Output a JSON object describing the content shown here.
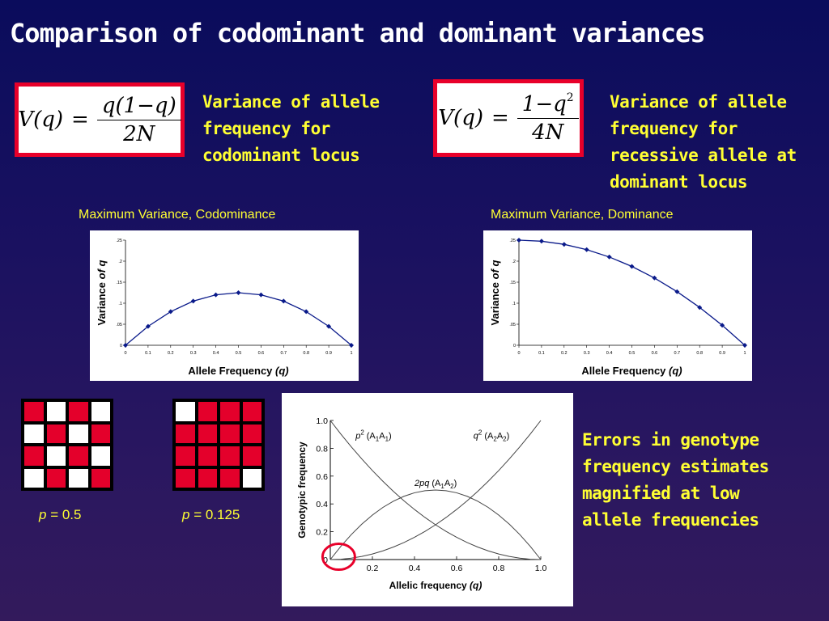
{
  "title": "Comparison of codominant and dominant variances",
  "formula1": {
    "lhs": "V(q)",
    "eq": "=",
    "num": "q(1−q)",
    "den": "2N"
  },
  "formula2": {
    "lhs": "V(q)",
    "eq": "=",
    "num": "1−q",
    "num_exp": "2",
    "den": "4N"
  },
  "caption1": [
    "Variance of allele",
    "frequency for",
    "codominant locus"
  ],
  "caption2": [
    "Variance of allele",
    "frequency for",
    "recessive allele at",
    "dominant locus"
  ],
  "chart_left_label": "Maximum Variance, Codominance",
  "chart_right_label": "Maximum Variance, Dominance",
  "grid1_label": {
    "var": "p",
    "rest": " = 0.5"
  },
  "grid2_label": {
    "var": "p",
    "rest": " = 0.125"
  },
  "errors_text": [
    "Errors in genotype",
    "frequency estimates",
    "magnified at low",
    "allele frequencies"
  ],
  "grid1": [
    "r",
    "w",
    "r",
    "w",
    "w",
    "r",
    "w",
    "r",
    "r",
    "w",
    "r",
    "w",
    "w",
    "r",
    "w",
    "r"
  ],
  "grid2": [
    "w",
    "r",
    "r",
    "r",
    "r",
    "r",
    "r",
    "r",
    "r",
    "r",
    "r",
    "r",
    "r",
    "r",
    "r",
    "w"
  ],
  "colors": {
    "red": "#e4002b",
    "yellow": "#ffff33",
    "series": "#0a1a8a",
    "highlight": "#e8002a"
  },
  "chart_data": [
    {
      "type": "line",
      "title": "",
      "xlabel": "Allele Frequency",
      "xlabel_var": "(q)",
      "ylabel": "Variance",
      "ylabel_var": "of q",
      "x": [
        0,
        0.1,
        0.2,
        0.3,
        0.4,
        0.5,
        0.6,
        0.7,
        0.8,
        0.9,
        1
      ],
      "series": [
        {
          "values": [
            0,
            0.045,
            0.08,
            0.105,
            0.12,
            0.125,
            0.12,
            0.105,
            0.08,
            0.045,
            0
          ]
        }
      ],
      "xticks": [
        "0",
        "0.1",
        "0.2",
        "0.3",
        "0.4",
        "0.5",
        "0.6",
        "0.7",
        "0.8",
        "0.9",
        "1"
      ],
      "yticks": [
        "0",
        ".05",
        ".1",
        ".15",
        ".2",
        ".25"
      ],
      "ytick_values": [
        0,
        0.05,
        0.1,
        0.15,
        0.2,
        0.25
      ],
      "xlim": [
        0,
        1
      ],
      "ylim": [
        0,
        0.25
      ],
      "grid": false
    },
    {
      "type": "line",
      "title": "",
      "xlabel": "Allele Frequency",
      "xlabel_var": "(q)",
      "ylabel": "Variance",
      "ylabel_var": "of q",
      "x": [
        0,
        0.1,
        0.2,
        0.3,
        0.4,
        0.5,
        0.6,
        0.7,
        0.8,
        0.9,
        1
      ],
      "series": [
        {
          "values": [
            0.25,
            0.2475,
            0.24,
            0.2275,
            0.21,
            0.1875,
            0.16,
            0.1275,
            0.09,
            0.0475,
            0
          ]
        }
      ],
      "xticks": [
        "0",
        "0.1",
        "0.2",
        "0.3",
        "0.4",
        "0.5",
        "0.6",
        "0.7",
        "0.8",
        "0.9",
        "1"
      ],
      "yticks": [
        "0",
        ".05",
        ".1",
        ".15",
        ".2",
        ".25"
      ],
      "ytick_values": [
        0,
        0.05,
        0.1,
        0.15,
        0.2,
        0.25
      ],
      "xlim": [
        0,
        1
      ],
      "ylim": [
        0,
        0.25
      ],
      "grid": false
    },
    {
      "type": "line",
      "title": "",
      "xlabel": "Allelic frequency",
      "xlabel_var": "(q)",
      "ylabel": "Genotypic frequency",
      "x": [
        0,
        0.05,
        0.1,
        0.15,
        0.2,
        0.25,
        0.3,
        0.35,
        0.4,
        0.45,
        0.5,
        0.55,
        0.6,
        0.65,
        0.7,
        0.75,
        0.8,
        0.85,
        0.9,
        0.95,
        1
      ],
      "series": [
        {
          "name": "p2 (A1A1)",
          "values": [
            1,
            0.9025,
            0.81,
            0.7225,
            0.64,
            0.5625,
            0.49,
            0.4225,
            0.36,
            0.3025,
            0.25,
            0.2025,
            0.16,
            0.1225,
            0.09,
            0.0625,
            0.04,
            0.0225,
            0.01,
            0.0025,
            0
          ]
        },
        {
          "name": "2pq (A1A2)",
          "values": [
            0,
            0.095,
            0.18,
            0.255,
            0.32,
            0.375,
            0.42,
            0.455,
            0.48,
            0.495,
            0.5,
            0.495,
            0.48,
            0.455,
            0.42,
            0.375,
            0.32,
            0.255,
            0.18,
            0.095,
            0
          ]
        },
        {
          "name": "q2 (A2A2)",
          "values": [
            0,
            0.0025,
            0.01,
            0.0225,
            0.04,
            0.0625,
            0.09,
            0.1225,
            0.16,
            0.2025,
            0.25,
            0.3025,
            0.36,
            0.4225,
            0.49,
            0.5625,
            0.64,
            0.7225,
            0.81,
            0.9025,
            1
          ]
        }
      ],
      "xticks": [
        "0",
        "0.2",
        "0.4",
        "0.6",
        "0.8",
        "1.0"
      ],
      "xtick_values": [
        0,
        0.2,
        0.4,
        0.6,
        0.8,
        1.0
      ],
      "yticks": [
        "0",
        "0.2",
        "0.4",
        "0.6",
        "0.8",
        "1.0"
      ],
      "ytick_values": [
        0,
        0.2,
        0.4,
        0.6,
        0.8,
        1.0
      ],
      "xlim": [
        0,
        1
      ],
      "ylim": [
        0,
        1
      ],
      "grid": false
    }
  ]
}
